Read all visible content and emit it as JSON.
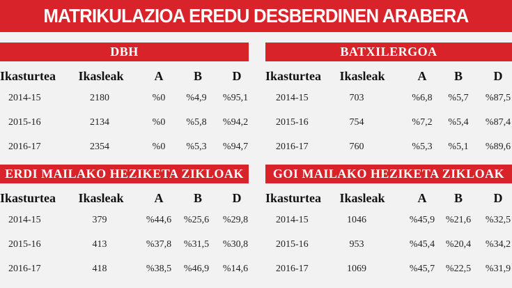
{
  "header": {
    "title": "MATRIKULAZIOA EREDU DESBERDINEN ARABERA"
  },
  "tables": [
    {
      "title": "DBH",
      "columns": [
        "Ikasturtea",
        "Ikasleak",
        "A",
        "B",
        "D"
      ],
      "rows": [
        [
          "2014-15",
          "2180",
          "%0",
          "%4,9",
          "%95,1"
        ],
        [
          "2015-16",
          "2134",
          "%0",
          "%5,8",
          "%94,2"
        ],
        [
          "2016-17",
          "2354",
          "%0",
          "%5,3",
          "%94,7"
        ]
      ]
    },
    {
      "title": "BATXILERGOA",
      "columns": [
        "Ikasturtea",
        "Ikasleak",
        "A",
        "B",
        "D"
      ],
      "rows": [
        [
          "2014-15",
          "703",
          "%6,8",
          "%5,7",
          "%87,5"
        ],
        [
          "2015-16",
          "754",
          "%7,2",
          "%5,4",
          "%87,4"
        ],
        [
          "2016-17",
          "760",
          "%5,3",
          "%5,1",
          "%89,6"
        ]
      ]
    },
    {
      "title": "ERDI MAILAKO HEZIKETA ZIKLOAK",
      "columns": [
        "Ikasturtea",
        "Ikasleak",
        "A",
        "B",
        "D"
      ],
      "rows": [
        [
          "2014-15",
          "379",
          "%44,6",
          "%25,6",
          "%29,8"
        ],
        [
          "2015-16",
          "413",
          "%37,8",
          "%31,5",
          "%30,8"
        ],
        [
          "2016-17",
          "418",
          "%38,5",
          "%46,9",
          "%14,6"
        ]
      ]
    },
    {
      "title": "GOI MAILAKO HEZIKETA ZIKLOAK",
      "columns": [
        "Ikasturtea",
        "Ikasleak",
        "A",
        "B",
        "D"
      ],
      "rows": [
        [
          "2014-15",
          "1046",
          "%45,9",
          "%21,6",
          "%32,5"
        ],
        [
          "2015-16",
          "953",
          "%45,4",
          "%20,4",
          "%34,2"
        ],
        [
          "2016-17",
          "1069",
          "%45,7",
          "%22,5",
          "%31,9"
        ]
      ]
    }
  ]
}
